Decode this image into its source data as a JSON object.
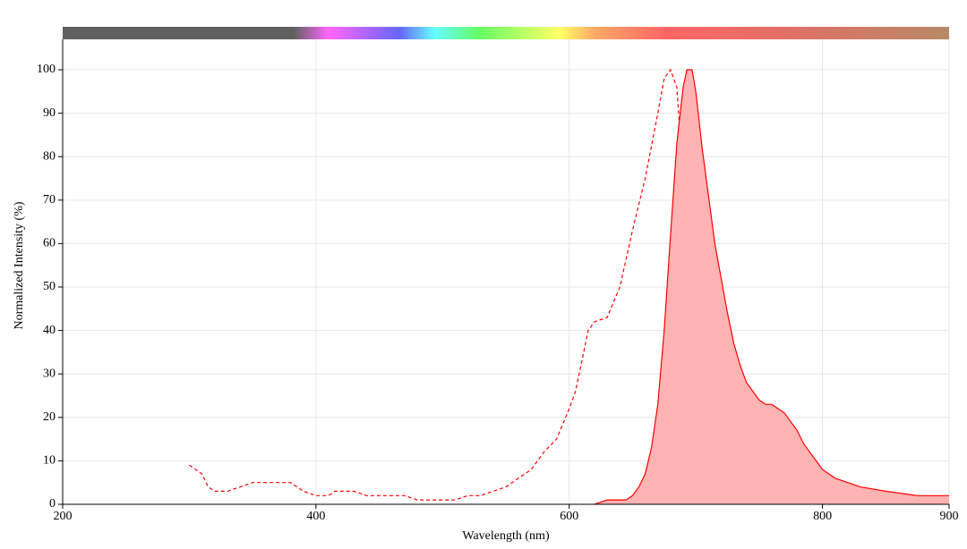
{
  "chart_data": {
    "type": "line",
    "x_label": "Wavelength (nm)",
    "y_label": "Normalized Intensity (%)",
    "xlim": [
      200,
      900
    ],
    "ylim": [
      0,
      107
    ],
    "xticks": [
      200,
      400,
      600,
      800,
      900
    ],
    "yticks": [
      0,
      10,
      20,
      30,
      40,
      50,
      60,
      70,
      80,
      90,
      100
    ],
    "grid": true,
    "series": [
      {
        "color": "#ff0000",
        "style": "dashed",
        "x": [
          300,
          305,
          310,
          315,
          320,
          330,
          340,
          350,
          380,
          390,
          400,
          410,
          415,
          430,
          440,
          470,
          480,
          510,
          520,
          530,
          540,
          550,
          560,
          570,
          580,
          590,
          600,
          605,
          610,
          615,
          620,
          630,
          640,
          650,
          660,
          670,
          675,
          680,
          685,
          690,
          695,
          700,
          705,
          710,
          715,
          720,
          730,
          735
        ],
        "values": [
          9,
          8,
          7,
          4,
          3,
          3,
          4,
          5,
          5,
          3,
          2,
          2,
          3,
          3,
          2,
          2,
          1,
          1,
          2,
          2,
          3,
          4,
          6,
          8,
          12,
          15,
          22,
          26,
          33,
          40,
          42,
          43,
          50,
          63,
          75,
          90,
          98,
          100,
          96,
          75,
          50,
          30,
          15,
          8,
          4,
          2,
          0.5,
          0
        ]
      },
      {
        "color": "#ff0000",
        "style": "filled",
        "fill": "#ffb3b3",
        "x": [
          620,
          630,
          645,
          650,
          655,
          660,
          665,
          670,
          675,
          680,
          685,
          690,
          693,
          697,
          700,
          705,
          710,
          715,
          720,
          725,
          730,
          735,
          740,
          745,
          750,
          755,
          760,
          765,
          770,
          775,
          780,
          785,
          790,
          795,
          800,
          810,
          820,
          830,
          850,
          875,
          890,
          900
        ],
        "values": [
          0,
          1,
          1,
          2,
          4,
          7,
          13,
          23,
          40,
          62,
          83,
          96,
          100,
          100,
          95,
          82,
          71,
          60,
          52,
          44,
          37,
          32,
          28,
          26,
          24,
          23,
          23,
          22,
          21,
          19,
          17,
          14,
          12,
          10,
          8,
          6,
          5,
          4,
          3,
          2,
          2,
          2
        ]
      }
    ]
  }
}
